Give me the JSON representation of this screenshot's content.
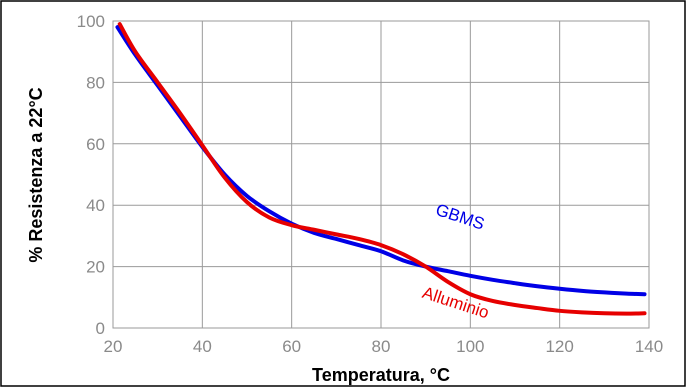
{
  "chart_data": {
    "type": "line",
    "title": "",
    "xlabel": "Temperatura, °C",
    "ylabel": "% Resistenza a 22°C",
    "xlim": [
      20,
      140
    ],
    "ylim": [
      0,
      100
    ],
    "xticks": [
      20,
      40,
      60,
      80,
      100,
      120,
      140
    ],
    "yticks": [
      0,
      20,
      40,
      60,
      80,
      100
    ],
    "x_tick_labels": [
      "20",
      "40",
      "60",
      "80",
      "100",
      "120",
      "140"
    ],
    "y_tick_labels": [
      "0",
      "20",
      "40",
      "60",
      "80",
      "100"
    ],
    "grid": true,
    "legend": "inline labels",
    "series": [
      {
        "name": "GBMS",
        "color": "#0000e6",
        "label_at": [
          92,
          37
        ],
        "x": [
          21,
          25,
          30,
          35,
          40,
          45,
          50,
          55,
          60,
          65,
          70,
          75,
          80,
          85,
          90,
          95,
          100,
          105,
          110,
          115,
          120,
          125,
          130,
          135,
          139
        ],
        "y": [
          98,
          89,
          79,
          69,
          59,
          50,
          43,
          38,
          34,
          31,
          29,
          27,
          25,
          22,
          20,
          18.5,
          17,
          15.7,
          14.6,
          13.6,
          12.8,
          12.1,
          11.6,
          11.2,
          11
        ]
      },
      {
        "name": "Alluminio",
        "color": "#e60000",
        "label_at": [
          89,
          10
        ],
        "x": [
          21.5,
          25,
          30,
          35,
          40,
          45,
          50,
          55,
          60,
          65,
          70,
          75,
          80,
          85,
          90,
          95,
          100,
          105,
          110,
          115,
          120,
          125,
          130,
          135,
          139
        ],
        "y": [
          99,
          90,
          80,
          70,
          59.5,
          49,
          41,
          36,
          33.5,
          32,
          30.5,
          29,
          27,
          24,
          20,
          15,
          11,
          8.8,
          7.5,
          6.5,
          5.6,
          5.1,
          4.8,
          4.7,
          4.8
        ]
      }
    ]
  }
}
